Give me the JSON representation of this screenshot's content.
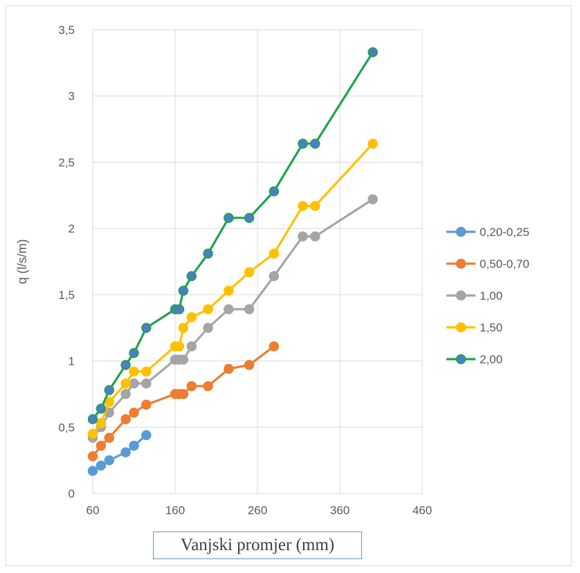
{
  "chart_data": {
    "type": "line",
    "xlabel": "Vanjski promjer (mm)",
    "ylabel": "q (l/s/m)",
    "xlim": [
      60,
      460
    ],
    "ylim": [
      0,
      3.5
    ],
    "xticks": [
      "60",
      "160",
      "260",
      "360",
      "460"
    ],
    "yticks": [
      "0",
      "0,5",
      "1",
      "1,5",
      "2",
      "2,5",
      "3",
      "3,5"
    ],
    "grid": true,
    "legend_position": "right",
    "series": [
      {
        "name": "0,20-0,25",
        "color": "#5b9bd5",
        "x": [
          60,
          70,
          80,
          100,
          110,
          125
        ],
        "y": [
          0.17,
          0.21,
          0.25,
          0.31,
          0.36,
          0.44
        ]
      },
      {
        "name": "0,50-0,70",
        "color": "#ed7d31",
        "x": [
          60,
          70,
          80,
          100,
          110,
          125,
          160,
          165,
          170,
          180,
          200,
          225,
          250,
          280
        ],
        "y": [
          0.28,
          0.36,
          0.42,
          0.56,
          0.61,
          0.67,
          0.75,
          0.75,
          0.75,
          0.81,
          0.81,
          0.94,
          0.97,
          1.11
        ]
      },
      {
        "name": "1,00",
        "color": "#a5a5a5",
        "x": [
          60,
          70,
          80,
          100,
          110,
          125,
          160,
          165,
          170,
          180,
          200,
          225,
          250,
          280,
          315,
          330,
          400
        ],
        "y": [
          0.42,
          0.5,
          0.61,
          0.75,
          0.83,
          0.83,
          1.01,
          1.01,
          1.01,
          1.11,
          1.25,
          1.39,
          1.39,
          1.64,
          1.94,
          1.94,
          2.22
        ]
      },
      {
        "name": "1,50",
        "color": "#ffc000",
        "x": [
          60,
          70,
          80,
          100,
          110,
          125,
          160,
          165,
          170,
          180,
          200,
          225,
          250,
          280,
          315,
          330,
          400
        ],
        "y": [
          0.45,
          0.53,
          0.69,
          0.83,
          0.92,
          0.92,
          1.11,
          1.11,
          1.25,
          1.33,
          1.39,
          1.53,
          1.67,
          1.81,
          2.17,
          2.17,
          2.64
        ]
      },
      {
        "name": "2,00",
        "color": "#1fa34a",
        "marker_color": "#4a7fc0",
        "x": [
          60,
          70,
          80,
          100,
          110,
          125,
          160,
          165,
          170,
          180,
          200,
          225,
          250,
          280,
          315,
          330,
          400
        ],
        "y": [
          0.56,
          0.64,
          0.78,
          0.97,
          1.06,
          1.25,
          1.39,
          1.39,
          1.53,
          1.64,
          1.81,
          2.08,
          2.08,
          2.28,
          2.64,
          2.64,
          3.33
        ]
      }
    ]
  }
}
